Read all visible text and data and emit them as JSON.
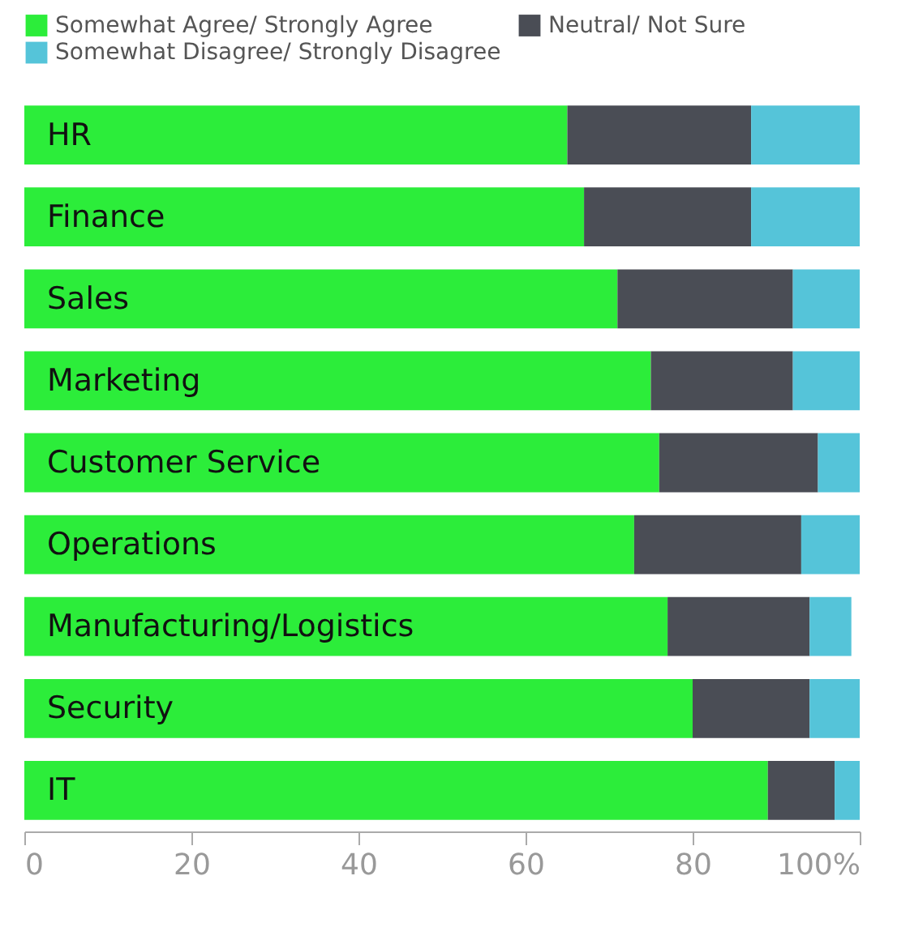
{
  "chart_data": {
    "type": "bar",
    "orientation": "horizontal",
    "stacked": true,
    "legend": "top",
    "categories": [
      "HR",
      "Finance",
      "Sales",
      "Marketing",
      "Customer Service",
      "Operations",
      "Manufacturing/Logistics",
      "Security",
      "IT"
    ],
    "series": [
      {
        "name": "Somewhat Agree/ Strongly Agree",
        "color": "#2ced3a",
        "values": [
          65,
          67,
          71,
          75,
          76,
          73,
          77,
          80,
          89
        ]
      },
      {
        "name": "Neutral/ Not Sure",
        "color": "#4a4d55",
        "values": [
          22,
          20,
          21,
          17,
          19,
          20,
          17,
          14,
          8
        ]
      },
      {
        "name": "Somewhat Disagree/ Strongly Disagree",
        "color": "#55c4d9",
        "values": [
          13,
          13,
          8,
          8,
          5,
          7,
          5,
          6,
          3
        ]
      }
    ],
    "xlim": [
      0,
      100
    ],
    "xticks": [
      0,
      20,
      40,
      60,
      80,
      {
        "value": 100,
        "label": "100%"
      }
    ]
  }
}
